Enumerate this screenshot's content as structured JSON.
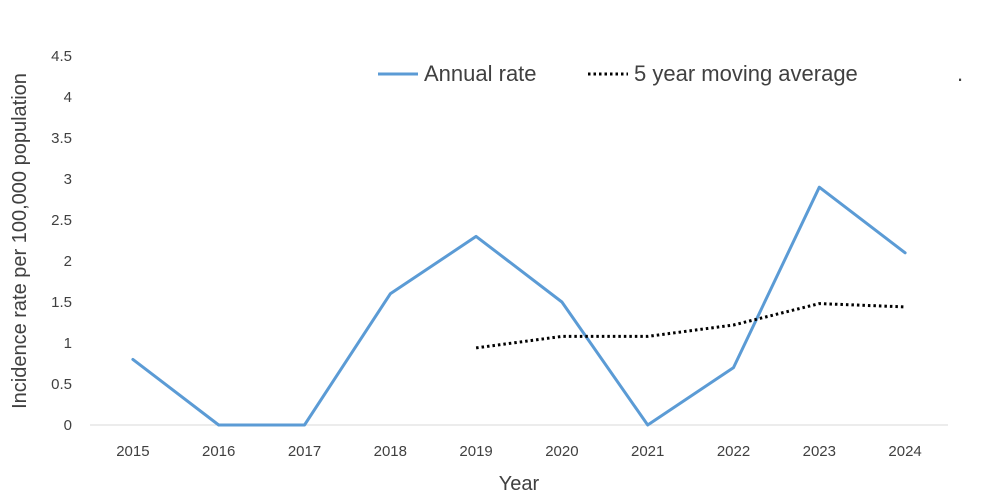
{
  "chart_data": {
    "type": "line",
    "categories": [
      "2015",
      "2016",
      "2017",
      "2018",
      "2019",
      "2020",
      "2021",
      "2022",
      "2023",
      "2024"
    ],
    "series": [
      {
        "name": "Annual rate",
        "values": [
          0.8,
          0,
          0,
          1.6,
          2.3,
          1.5,
          0,
          0.7,
          2.9,
          2.1
        ],
        "color": "#5b9bd5",
        "style": "solid"
      },
      {
        "name": "5 year moving average",
        "values": [
          null,
          null,
          null,
          null,
          0.94,
          1.08,
          1.08,
          1.22,
          1.48,
          1.44
        ],
        "color": "#000000",
        "style": "dotted"
      }
    ],
    "xlabel": "Year",
    "ylabel": "Incidence rate per 100,000 population",
    "ylim": [
      0,
      4.5
    ],
    "yticks": [
      "0",
      "0.5",
      "1",
      "1.5",
      "2",
      "2.5",
      "3",
      "3.5",
      "4",
      "4.5"
    ],
    "grid": false,
    "legend": "top-right",
    "legend_trailing": "."
  }
}
